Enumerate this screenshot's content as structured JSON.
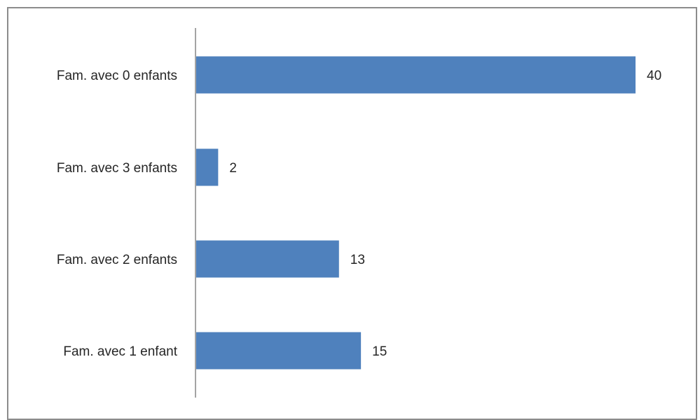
{
  "chart_data": {
    "type": "bar",
    "orientation": "horizontal",
    "categories": [
      "Fam. avec 0 enfants",
      "Fam. avec 3 enfants",
      "Fam. avec 2 enfants",
      "Fam. avec 1 enfant"
    ],
    "values": [
      40,
      2,
      13,
      15
    ],
    "title": "",
    "xlabel": "",
    "ylabel": "",
    "xlim": [
      0,
      45
    ],
    "grid": false,
    "legend": "none",
    "data_labels": true,
    "bar_color": "#4f81bd"
  }
}
